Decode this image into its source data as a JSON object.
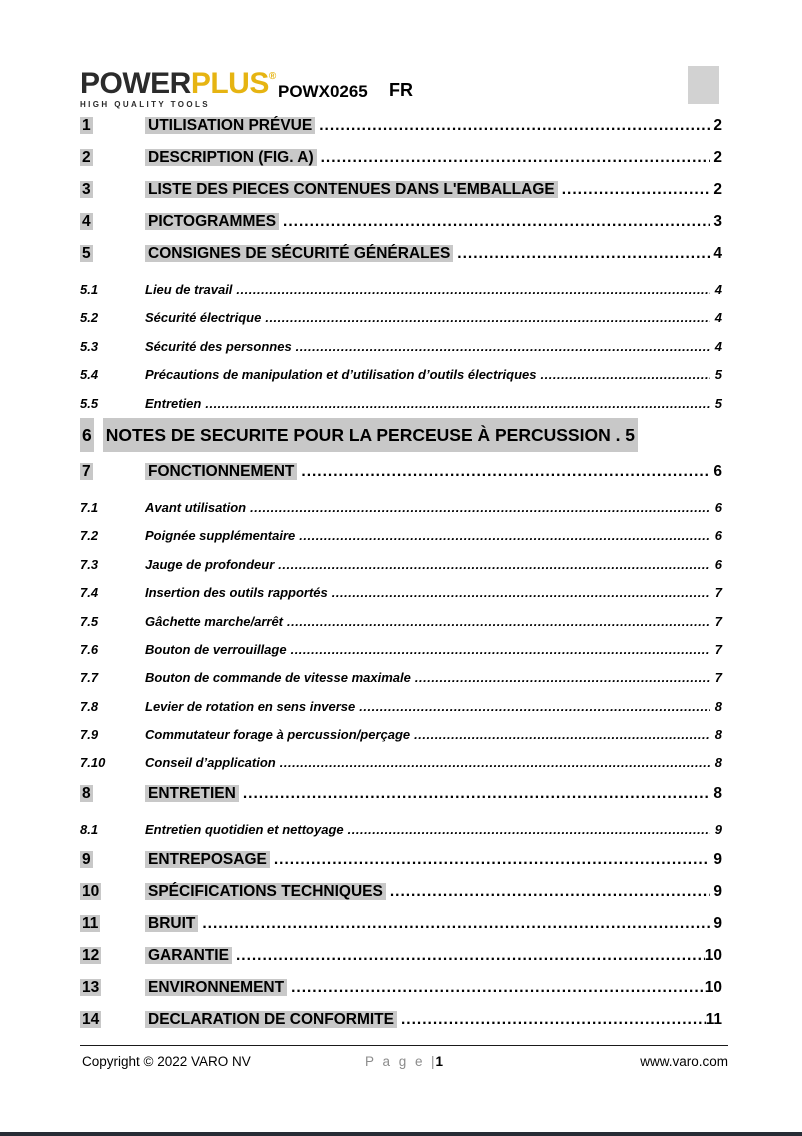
{
  "logo": {
    "power": "POWER",
    "plus": "PLUS",
    "registered": "®",
    "tagline": "HIGH QUALITY TOOLS"
  },
  "header": {
    "model": "POWX0265",
    "lang": "FR"
  },
  "toc": {
    "entries": [
      {
        "level": "main",
        "num": "1",
        "title": "UTILISATION PRÉVUE",
        "page": "2"
      },
      {
        "level": "main",
        "num": "2",
        "title": "DESCRIPTION (FIG. A)",
        "page": "2"
      },
      {
        "level": "main",
        "num": "3",
        "title": "LISTE DES PIECES CONTENUES DANS L'EMBALLAGE",
        "page": "2"
      },
      {
        "level": "main",
        "num": "4",
        "title": "PICTOGRAMMES",
        "page": "3"
      },
      {
        "level": "main",
        "num": "5",
        "title": "CONSIGNES DE SÉCURITÉ GÉNÉRALES",
        "page": "4"
      },
      {
        "level": "sub",
        "num": "5.1",
        "title": "Lieu de travail",
        "page": "4"
      },
      {
        "level": "sub",
        "num": "5.2",
        "title": "Sécurité électrique",
        "page": "4"
      },
      {
        "level": "sub",
        "num": "5.3",
        "title": "Sécurité des personnes",
        "page": "4"
      },
      {
        "level": "sub",
        "num": "5.4",
        "title": "Précautions de manipulation et d’utilisation d’outils électriques",
        "page": "5"
      },
      {
        "level": "sub",
        "num": "5.5",
        "title": "Entretien",
        "page": "5"
      },
      {
        "level": "wide",
        "num": "6",
        "title": "NOTES DE SECURITE POUR LA PERCEUSE À PERCUSSION",
        "page": "5"
      },
      {
        "level": "main",
        "num": "7",
        "title": "FONCTIONNEMENT",
        "page": "6"
      },
      {
        "level": "sub",
        "num": "7.1",
        "title": "Avant utilisation",
        "page": "6"
      },
      {
        "level": "sub",
        "num": "7.2",
        "title": "Poignée supplémentaire",
        "page": "6"
      },
      {
        "level": "sub",
        "num": "7.3",
        "title": "Jauge de profondeur",
        "page": "6"
      },
      {
        "level": "sub",
        "num": "7.4",
        "title": "Insertion des outils rapportés",
        "page": "7"
      },
      {
        "level": "sub",
        "num": "7.5",
        "title": "Gâchette marche/arrêt",
        "page": "7"
      },
      {
        "level": "sub",
        "num": "7.6",
        "title": "Bouton de verrouillage",
        "page": "7"
      },
      {
        "level": "sub",
        "num": "7.7",
        "title": "Bouton de commande de vitesse maximale",
        "page": "7"
      },
      {
        "level": "sub",
        "num": "7.8",
        "title": "Levier de rotation en sens inverse",
        "page": "8"
      },
      {
        "level": "sub",
        "num": "7.9",
        "title": "Commutateur forage à percussion/perçage",
        "page": "8"
      },
      {
        "level": "sub",
        "num": "7.10",
        "title": "Conseil d’application",
        "page": "8"
      },
      {
        "level": "main",
        "num": "8",
        "title": "ENTRETIEN",
        "page": "8"
      },
      {
        "level": "sub",
        "num": "8.1",
        "title": "Entretien quotidien et nettoyage",
        "page": "9"
      },
      {
        "level": "main",
        "num": "9",
        "title": "ENTREPOSAGE",
        "page": "9"
      },
      {
        "level": "main",
        "num": "10",
        "title": "SPÉCIFICATIONS TECHNIQUES",
        "page": "9"
      },
      {
        "level": "main",
        "num": "11",
        "title": "BRUIT",
        "page": "9"
      },
      {
        "level": "main",
        "num": "12",
        "title": "GARANTIE",
        "page": "10"
      },
      {
        "level": "main",
        "num": "13",
        "title": "ENVIRONNEMENT",
        "page": "10"
      },
      {
        "level": "main",
        "num": "14",
        "title": "DECLARATION DE CONFORMITE",
        "page": "11"
      }
    ]
  },
  "footer": {
    "copyright": "Copyright © 2022 VARO NV",
    "page_word": "P a g e",
    "separator": "|",
    "page_number": "1",
    "website": "www.varo.com"
  },
  "colors": {
    "highlight": "#c8c8c8",
    "brand_yellow": "#e6b412",
    "placeholder_gray": "#d2d2d2",
    "bottom_bar": "#272c35"
  }
}
